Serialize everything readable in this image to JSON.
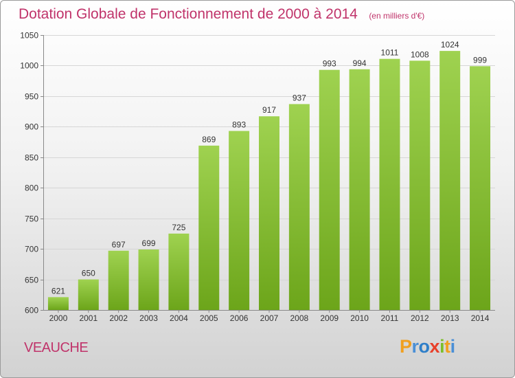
{
  "chart_data": {
    "type": "bar",
    "title": "Dotation Globale de Fonctionnement de 2000 à 2014",
    "subtitle": "(en milliers d'€)",
    "categories": [
      "2000",
      "2001",
      "2002",
      "2003",
      "2004",
      "2005",
      "2006",
      "2007",
      "2008",
      "2009",
      "2010",
      "2011",
      "2012",
      "2013",
      "2014"
    ],
    "values": [
      621,
      650,
      697,
      699,
      725,
      869,
      893,
      917,
      937,
      993,
      994,
      1011,
      1008,
      1024,
      999
    ],
    "ylim": [
      600,
      1050
    ],
    "yticks": [
      600,
      650,
      700,
      750,
      800,
      850,
      900,
      950,
      1000,
      1050
    ],
    "grid": true,
    "legend": "none",
    "bar_color_top": "#9fd250",
    "bar_color_bottom": "#6ca51a"
  },
  "commune": "VEAUCHE",
  "logo": {
    "letters": [
      "P",
      "r",
      "o",
      "x",
      "i",
      "t",
      "i"
    ],
    "colors": [
      "#f0a020",
      "#4a8fd6",
      "#2f7fc9",
      "#e8402a",
      "#7bbf2a",
      "#f0a020",
      "#4a8fd6"
    ]
  }
}
